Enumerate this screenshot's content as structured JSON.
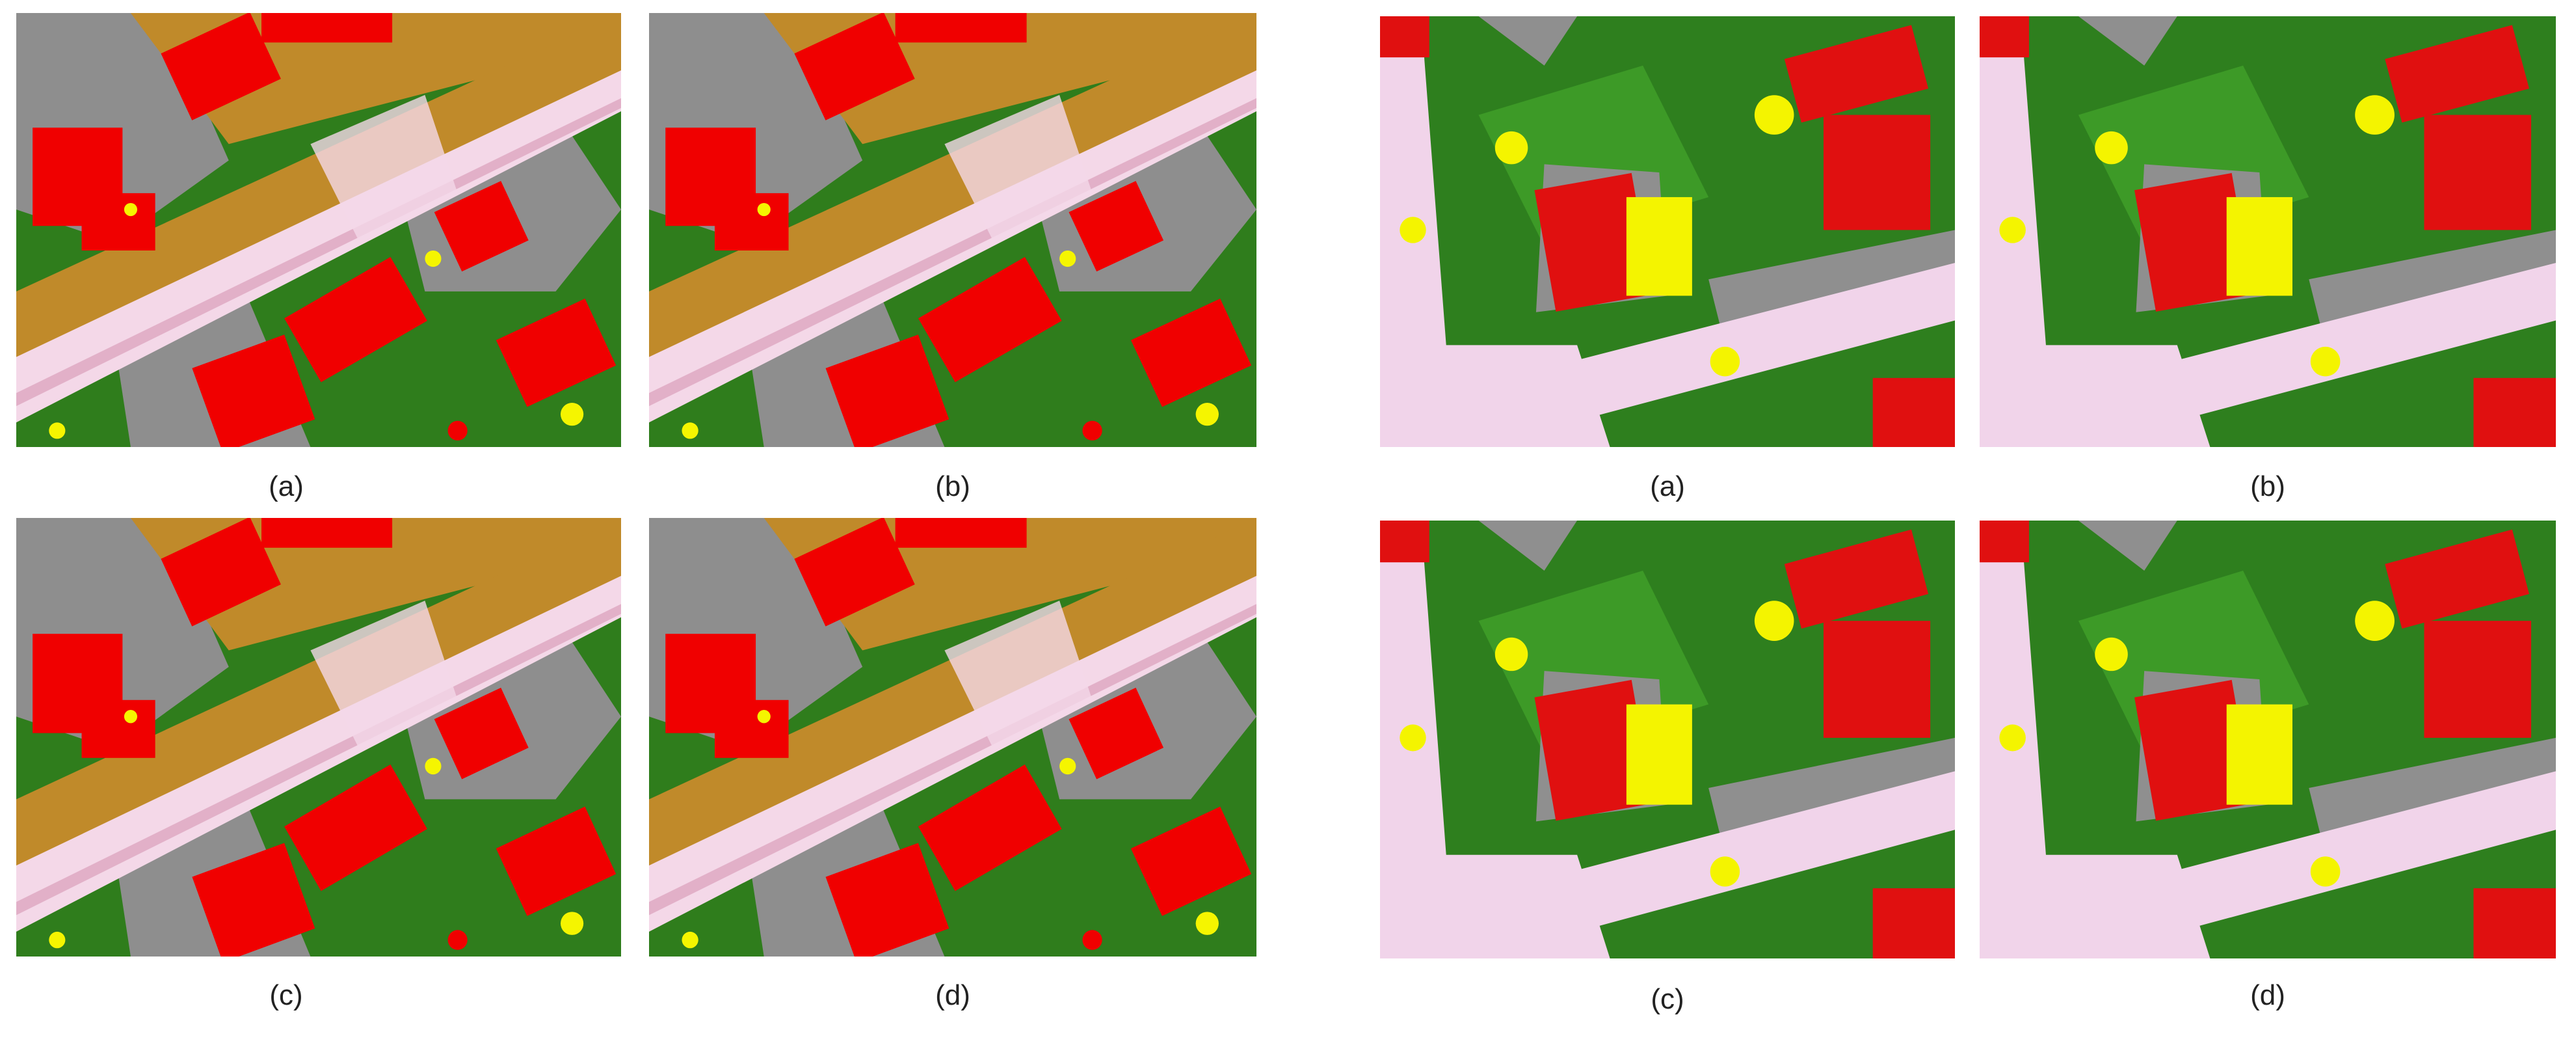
{
  "figures": [
    {
      "panels": [
        "(a)",
        "(b)",
        "(c)",
        "(d)"
      ]
    },
    {
      "panels": [
        "(a)",
        "(b)",
        "(c)",
        "(d)"
      ]
    }
  ]
}
